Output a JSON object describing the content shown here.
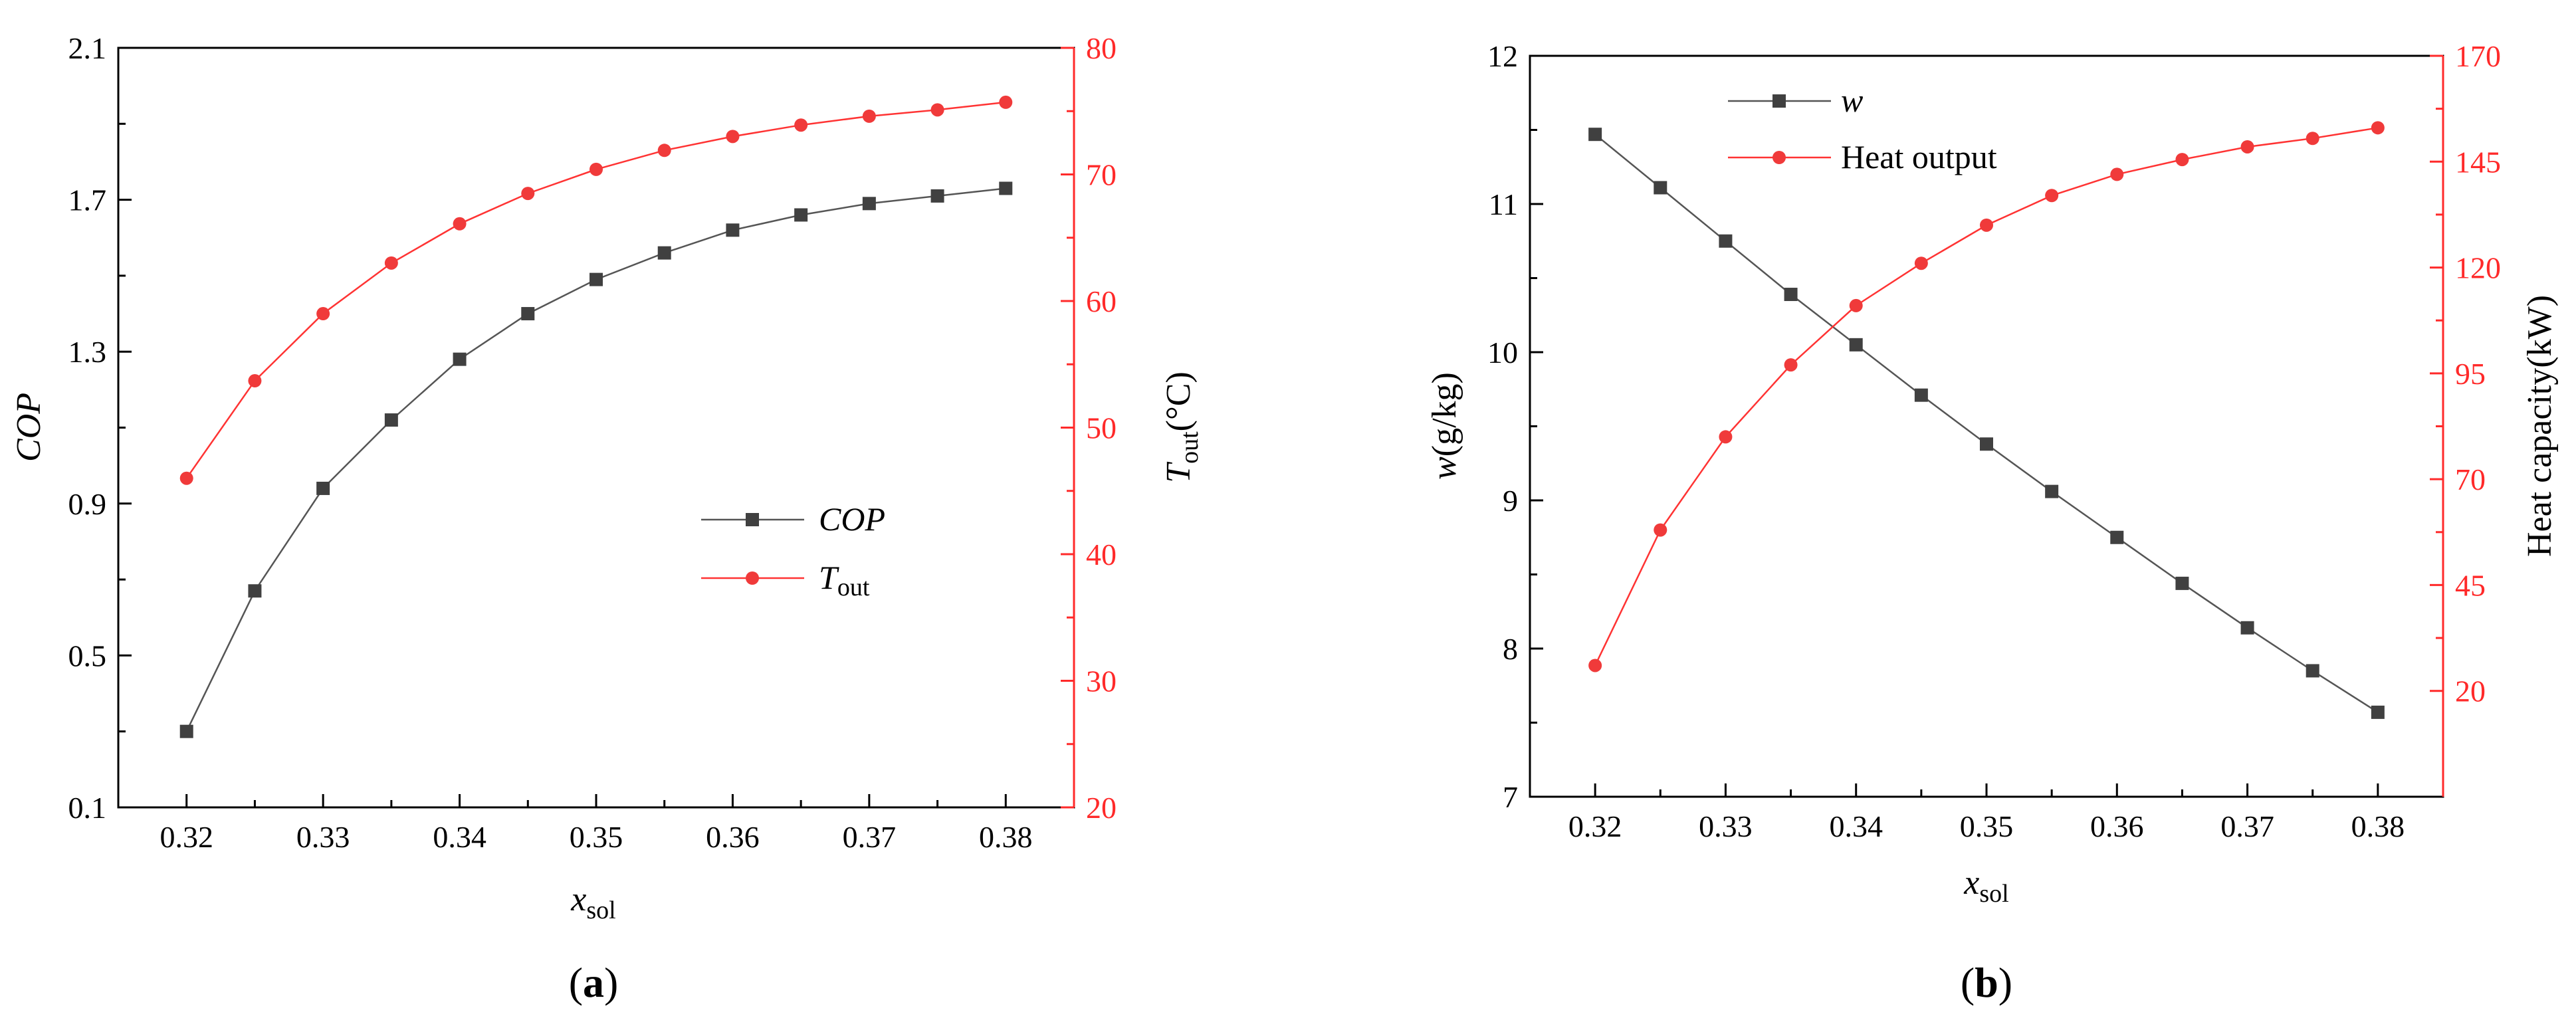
{
  "chart_data": [
    {
      "type": "line",
      "panel_label": "a",
      "x": [
        0.32,
        0.325,
        0.33,
        0.335,
        0.34,
        0.345,
        0.35,
        0.355,
        0.36,
        0.365,
        0.37,
        0.375,
        0.38
      ],
      "x_ticks": [
        "0.32",
        "0.33",
        "0.34",
        "0.35",
        "0.36",
        "0.37",
        "0.38"
      ],
      "xlabel": {
        "main": "x",
        "sub": "sol"
      },
      "ylabel_left": "COP",
      "ylabel_right": {
        "main": "T",
        "sub": "out",
        "suffix": "(°C)"
      },
      "ylim_left": [
        0.1,
        2.1
      ],
      "ylim_right": [
        20,
        80
      ],
      "y_ticks_left": [
        "0.1",
        "0.5",
        "0.9",
        "1.3",
        "1.7",
        "2.1"
      ],
      "y_ticks_right": [
        "20",
        "30",
        "40",
        "50",
        "60",
        "70",
        "80"
      ],
      "legend_position": "center-right",
      "series": [
        {
          "name": "COP",
          "legend_label": {
            "main": "COP",
            "sub": ""
          },
          "axis": "left",
          "color": "#404040",
          "marker": "square",
          "values": [
            0.3,
            0.67,
            0.94,
            1.12,
            1.28,
            1.4,
            1.49,
            1.56,
            1.62,
            1.66,
            1.69,
            1.71,
            1.73
          ]
        },
        {
          "name": "Tout",
          "legend_label": {
            "main": "T",
            "sub": "out"
          },
          "axis": "right",
          "color": "#f03a3a",
          "marker": "circle",
          "values": [
            46.0,
            53.7,
            59.0,
            63.0,
            66.1,
            68.5,
            70.4,
            71.9,
            73.0,
            73.9,
            74.6,
            75.1,
            75.7
          ]
        }
      ]
    },
    {
      "type": "line",
      "panel_label": "b",
      "x": [
        0.32,
        0.325,
        0.33,
        0.335,
        0.34,
        0.345,
        0.35,
        0.355,
        0.36,
        0.365,
        0.37,
        0.375,
        0.38
      ],
      "x_ticks": [
        "0.32",
        "0.33",
        "0.34",
        "0.35",
        "0.36",
        "0.37",
        "0.38"
      ],
      "xlabel": {
        "main": "x",
        "sub": "sol"
      },
      "ylabel_left": {
        "main": "w",
        "suffix": "(g/kg)"
      },
      "ylabel_right": "Heat capacity(kW)",
      "ylim_left": [
        7,
        12
      ],
      "ylim_right": [
        -5,
        170
      ],
      "y_ticks_left": [
        "7",
        "8",
        "9",
        "10",
        "11",
        "12"
      ],
      "y_ticks_right": [
        "20",
        "45",
        "70",
        "95",
        "120",
        "145",
        "170"
      ],
      "legend_position": "top-left",
      "series": [
        {
          "name": "w",
          "legend_label": {
            "main": "w",
            "sub": ""
          },
          "axis": "left",
          "color": "#404040",
          "marker": "square",
          "values": [
            11.47,
            11.11,
            10.75,
            10.39,
            10.05,
            9.71,
            9.38,
            9.06,
            8.75,
            8.44,
            8.14,
            7.85,
            7.57
          ]
        },
        {
          "name": "Heat output",
          "legend_label": {
            "main": "Heat output",
            "sub": ""
          },
          "axis": "right",
          "color": "#f03a3a",
          "marker": "circle",
          "values": [
            26,
            58,
            80,
            97,
            111,
            121,
            130,
            137,
            142,
            145.5,
            148.5,
            150.5,
            153
          ]
        }
      ]
    }
  ]
}
